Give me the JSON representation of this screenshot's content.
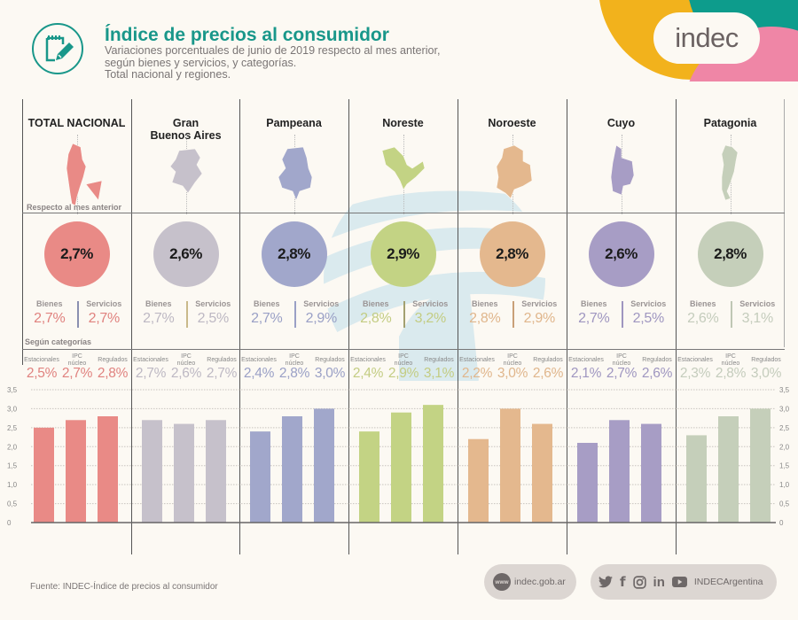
{
  "header": {
    "title": "Índice de precios al consumidor",
    "subtitle_lines": [
      "Variaciones porcentuales de junio de 2019 respecto al mes anterior,",
      "según bienes y servicios, y categorías.",
      "Total nacional y regiones."
    ],
    "logo_text": "indec",
    "icon": "notepad-pencil-icon"
  },
  "labels": {
    "respecto": "Respecto al mes anterior",
    "segun": "Según categorías",
    "bienes": "Bienes",
    "servicios": "Servicios",
    "estacionales": "Estacionales",
    "ipc_nucleo_1": "IPC",
    "ipc_nucleo_2": "núcleo",
    "regulados": "Regulados"
  },
  "regions": [
    {
      "name_line1": "TOTAL NACIONAL",
      "name_line2": "",
      "total": "2,7%",
      "bienes": "2,7%",
      "servicios": "2,7%",
      "estacionales": "2,5%",
      "nucleo": "2,7%",
      "regulados": "2,8%",
      "color": "#e98a86",
      "text_color": "#e0827f",
      "sep_color": "#8a8fb0"
    },
    {
      "name_line1": "Gran",
      "name_line2": "Buenos Aires",
      "total": "2,6%",
      "bienes": "2,7%",
      "servicios": "2,5%",
      "estacionales": "2,7%",
      "nucleo": "2,6%",
      "regulados": "2,7%",
      "color": "#c6c1cb",
      "text_color": "#bdb8c3",
      "sep_color": "#c9b98a"
    },
    {
      "name_line1": "Pampeana",
      "name_line2": "",
      "total": "2,8%",
      "bienes": "2,7%",
      "servicios": "2,9%",
      "estacionales": "2,4%",
      "nucleo": "2,8%",
      "regulados": "3,0%",
      "color": "#a1a7cb",
      "text_color": "#9aa0c6",
      "sep_color": "#9aa0c6"
    },
    {
      "name_line1": "Noreste",
      "name_line2": "",
      "total": "2,9%",
      "bienes": "2,8%",
      "servicios": "3,2%",
      "estacionales": "2,4%",
      "nucleo": "2,9%",
      "regulados": "3,1%",
      "color": "#c3d384",
      "text_color": "#c3cc82",
      "sep_color": "#a3a070"
    },
    {
      "name_line1": "Noroeste",
      "name_line2": "",
      "total": "2,8%",
      "bienes": "2,8%",
      "servicios": "2,9%",
      "estacionales": "2,2%",
      "nucleo": "3,0%",
      "regulados": "2,6%",
      "color": "#e4b88e",
      "text_color": "#e0b68c",
      "sep_color": "#c9a078"
    },
    {
      "name_line1": "Cuyo",
      "name_line2": "",
      "total": "2,6%",
      "bienes": "2,7%",
      "servicios": "2,5%",
      "estacionales": "2,1%",
      "nucleo": "2,7%",
      "regulados": "2,6%",
      "color": "#a79dc5",
      "text_color": "#9f96c0",
      "sep_color": "#9f96c0"
    },
    {
      "name_line1": "Patagonia",
      "name_line2": "",
      "total": "2,8%",
      "bienes": "2,6%",
      "servicios": "3,1%",
      "estacionales": "2,3%",
      "nucleo": "2,8%",
      "regulados": "3,0%",
      "color": "#c5cfba",
      "text_color": "#c4ccbc",
      "sep_color": "#bfc7b4"
    }
  ],
  "chart_data": {
    "type": "bar",
    "title": "Según categorías",
    "xlabel": "",
    "ylabel": "",
    "ylim": [
      0,
      3.5
    ],
    "yticks": [
      "0",
      "0,5",
      "1,0",
      "1,5",
      "2,0",
      "2,5",
      "3,0",
      "3,5"
    ],
    "grid": true,
    "categories": [
      "Estacionales",
      "IPC núcleo",
      "Regulados"
    ],
    "series": [
      {
        "name": "Total Nacional",
        "values": [
          2.5,
          2.7,
          2.8
        ]
      },
      {
        "name": "Gran Buenos Aires",
        "values": [
          2.7,
          2.6,
          2.7
        ]
      },
      {
        "name": "Pampeana",
        "values": [
          2.4,
          2.8,
          3.0
        ]
      },
      {
        "name": "Noreste",
        "values": [
          2.4,
          2.9,
          3.1
        ]
      },
      {
        "name": "Noroeste",
        "values": [
          2.2,
          3.0,
          2.6
        ]
      },
      {
        "name": "Cuyo",
        "values": [
          2.1,
          2.7,
          2.6
        ]
      },
      {
        "name": "Patagonia",
        "values": [
          2.3,
          2.8,
          3.0
        ]
      }
    ]
  },
  "footer": {
    "source": "Fuente: INDEC-Índice de precios al consumidor",
    "website": "indec.gob.ar",
    "www_badge": "www",
    "social_handle": "INDECArgentina",
    "social_icons": [
      "twitter-icon",
      "facebook-icon",
      "instagram-icon",
      "linkedin-icon",
      "youtube-icon"
    ]
  }
}
